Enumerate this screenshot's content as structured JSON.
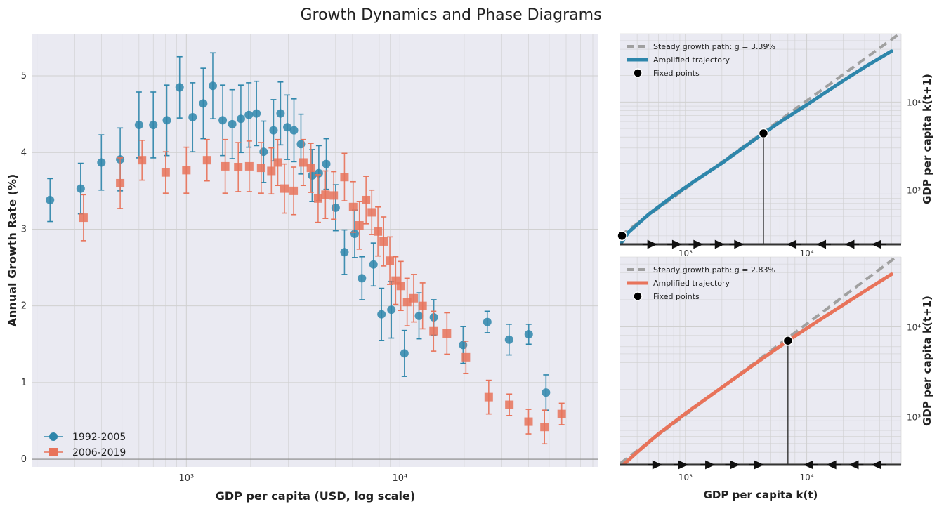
{
  "figure": {
    "title": "Growth Dynamics and Phase Diagrams"
  },
  "colors": {
    "blue": "#2E86AB",
    "orange": "#E8735A",
    "panel_bg": "#EAEAF2",
    "grid": "#D0D0D0",
    "axis_dark": "#333333"
  },
  "chart_data": [
    {
      "type": "scatter",
      "title": "",
      "xlabel": "GDP per capita (USD, log scale)",
      "ylabel": "Annual Growth Rate (%)",
      "xscale": "log",
      "xlim": [
        190,
        85000
      ],
      "ylim": [
        -0.1,
        5.55
      ],
      "xticks": [
        {
          "v": 1000,
          "label": "10³"
        },
        {
          "v": 10000,
          "label": "10⁴"
        }
      ],
      "yticks": [
        0,
        1,
        2,
        3,
        4,
        5
      ],
      "legend_position": "bottom-left",
      "series": [
        {
          "name": "1992-2005",
          "marker": "circle",
          "color": "#2E86AB",
          "points": [
            {
              "x": 230,
              "y": 3.38,
              "err": 0.28
            },
            {
              "x": 320,
              "y": 3.53,
              "err": 0.33
            },
            {
              "x": 400,
              "y": 3.87,
              "err": 0.36
            },
            {
              "x": 490,
              "y": 3.91,
              "err": 0.41
            },
            {
              "x": 600,
              "y": 4.36,
              "err": 0.43
            },
            {
              "x": 700,
              "y": 4.36,
              "err": 0.43
            },
            {
              "x": 810,
              "y": 4.42,
              "err": 0.46
            },
            {
              "x": 930,
              "y": 4.85,
              "err": 0.4
            },
            {
              "x": 1070,
              "y": 4.46,
              "err": 0.45
            },
            {
              "x": 1200,
              "y": 4.64,
              "err": 0.46
            },
            {
              "x": 1330,
              "y": 4.87,
              "err": 0.43
            },
            {
              "x": 1480,
              "y": 4.42,
              "err": 0.46
            },
            {
              "x": 1640,
              "y": 4.37,
              "err": 0.45
            },
            {
              "x": 1800,
              "y": 4.44,
              "err": 0.44
            },
            {
              "x": 1960,
              "y": 4.49,
              "err": 0.42
            },
            {
              "x": 2130,
              "y": 4.51,
              "err": 0.42
            },
            {
              "x": 2300,
              "y": 4.01,
              "err": 0.4
            },
            {
              "x": 2560,
              "y": 4.29,
              "err": 0.4
            },
            {
              "x": 2760,
              "y": 4.51,
              "err": 0.41
            },
            {
              "x": 2970,
              "y": 4.33,
              "err": 0.42
            },
            {
              "x": 3190,
              "y": 4.29,
              "err": 0.41
            },
            {
              "x": 3440,
              "y": 4.11,
              "err": 0.39
            },
            {
              "x": 3880,
              "y": 3.7,
              "err": 0.34
            },
            {
              "x": 4170,
              "y": 3.73,
              "err": 0.36
            },
            {
              "x": 4520,
              "y": 3.85,
              "err": 0.33
            },
            {
              "x": 5000,
              "y": 3.28,
              "err": 0.3
            },
            {
              "x": 5500,
              "y": 2.7,
              "err": 0.29
            },
            {
              "x": 6140,
              "y": 2.94,
              "err": 0.31
            },
            {
              "x": 6640,
              "y": 2.36,
              "err": 0.28
            },
            {
              "x": 7520,
              "y": 2.54,
              "err": 0.28
            },
            {
              "x": 8200,
              "y": 1.89,
              "err": 0.34
            },
            {
              "x": 9120,
              "y": 1.95,
              "err": 0.37
            },
            {
              "x": 10500,
              "y": 1.38,
              "err": 0.3
            },
            {
              "x": 12280,
              "y": 1.87,
              "err": 0.3
            },
            {
              "x": 14410,
              "y": 1.85,
              "err": 0.23
            },
            {
              "x": 19760,
              "y": 1.49,
              "err": 0.24
            },
            {
              "x": 25650,
              "y": 1.79,
              "err": 0.14
            },
            {
              "x": 32440,
              "y": 1.56,
              "err": 0.2
            },
            {
              "x": 40090,
              "y": 1.63,
              "err": 0.13
            },
            {
              "x": 48290,
              "y": 0.87,
              "err": 0.23
            }
          ]
        },
        {
          "name": "2006-2019",
          "marker": "square",
          "color": "#E8735A",
          "points": [
            {
              "x": 330,
              "y": 3.15,
              "err": 0.3
            },
            {
              "x": 490,
              "y": 3.6,
              "err": 0.33
            },
            {
              "x": 620,
              "y": 3.9,
              "err": 0.26
            },
            {
              "x": 800,
              "y": 3.74,
              "err": 0.27
            },
            {
              "x": 1000,
              "y": 3.77,
              "err": 0.3
            },
            {
              "x": 1250,
              "y": 3.9,
              "err": 0.27
            },
            {
              "x": 1520,
              "y": 3.82,
              "err": 0.35
            },
            {
              "x": 1750,
              "y": 3.81,
              "err": 0.32
            },
            {
              "x": 1970,
              "y": 3.82,
              "err": 0.33
            },
            {
              "x": 2240,
              "y": 3.8,
              "err": 0.33
            },
            {
              "x": 2500,
              "y": 3.76,
              "err": 0.3
            },
            {
              "x": 2680,
              "y": 3.87,
              "err": 0.3
            },
            {
              "x": 2880,
              "y": 3.53,
              "err": 0.32
            },
            {
              "x": 3180,
              "y": 3.5,
              "err": 0.31
            },
            {
              "x": 3530,
              "y": 3.87,
              "err": 0.3
            },
            {
              "x": 3830,
              "y": 3.8,
              "err": 0.32
            },
            {
              "x": 4140,
              "y": 3.4,
              "err": 0.31
            },
            {
              "x": 4480,
              "y": 3.45,
              "err": 0.31
            },
            {
              "x": 4900,
              "y": 3.44,
              "err": 0.31
            },
            {
              "x": 5500,
              "y": 3.68,
              "err": 0.31
            },
            {
              "x": 6040,
              "y": 3.29,
              "err": 0.33
            },
            {
              "x": 6460,
              "y": 3.05,
              "err": 0.31
            },
            {
              "x": 6940,
              "y": 3.38,
              "err": 0.31
            },
            {
              "x": 7380,
              "y": 3.22,
              "err": 0.29
            },
            {
              "x": 7890,
              "y": 2.97,
              "err": 0.32
            },
            {
              "x": 8390,
              "y": 2.84,
              "err": 0.32
            },
            {
              "x": 8970,
              "y": 2.59,
              "err": 0.31
            },
            {
              "x": 9550,
              "y": 2.33,
              "err": 0.31
            },
            {
              "x": 10100,
              "y": 2.26,
              "err": 0.32
            },
            {
              "x": 10810,
              "y": 2.05,
              "err": 0.31
            },
            {
              "x": 11600,
              "y": 2.1,
              "err": 0.31
            },
            {
              "x": 12770,
              "y": 2.0,
              "err": 0.3
            },
            {
              "x": 14370,
              "y": 1.67,
              "err": 0.26
            },
            {
              "x": 16600,
              "y": 1.64,
              "err": 0.27
            },
            {
              "x": 20370,
              "y": 1.33,
              "err": 0.21
            },
            {
              "x": 26050,
              "y": 0.81,
              "err": 0.22
            },
            {
              "x": 32530,
              "y": 0.71,
              "err": 0.14
            },
            {
              "x": 40010,
              "y": 0.49,
              "err": 0.16
            },
            {
              "x": 47520,
              "y": 0.42,
              "err": 0.22
            },
            {
              "x": 57200,
              "y": 0.59,
              "err": 0.14
            }
          ]
        }
      ]
    },
    {
      "type": "line",
      "title": "",
      "xlabel": "",
      "ylabel": "GDP per capita k(t+1)",
      "xscale": "log",
      "yscale": "log",
      "xlim": [
        290,
        60000
      ],
      "ylim": [
        240,
        60000
      ],
      "xticks": [
        {
          "v": 1000,
          "label": "10³"
        },
        {
          "v": 10000,
          "label": "10⁴"
        }
      ],
      "yticks": [
        {
          "v": 1000,
          "label": "10³"
        },
        {
          "v": 10000,
          "label": "10⁴"
        }
      ],
      "steady_growth_rate": 3.39,
      "series": [
        {
          "name": "Steady growth path: g = 3.39%",
          "style": "dashed",
          "color": "#A0A0A0",
          "x": [
            290,
            60000
          ],
          "y": [
            300,
            62000
          ]
        },
        {
          "name": "Amplified trajectory",
          "style": "solid",
          "color": "#2E86AB",
          "x": [
            290,
            340,
            500,
            800,
            1200,
            2000,
            3000,
            4400,
            6000,
            10000,
            20000,
            30000,
            50000
          ],
          "y": [
            240,
            330,
            530,
            860,
            1270,
            2020,
            3030,
            4400,
            5900,
            9300,
            17500,
            25000,
            38000
          ]
        }
      ],
      "fixed_points": [
        {
          "x": 300,
          "y": 300
        },
        {
          "x": 4400,
          "y": 4400
        }
      ],
      "legend_labels": [
        "Steady growth path: g = 3.39%",
        "Amplified trajectory",
        "Fixed points"
      ],
      "flow_arrows": [
        {
          "x": 500,
          "dir": "right"
        },
        {
          "x": 800,
          "dir": "right"
        },
        {
          "x": 1200,
          "dir": "right"
        },
        {
          "x": 1800,
          "dir": "right"
        },
        {
          "x": 2600,
          "dir": "right"
        },
        {
          "x": 8000,
          "dir": "left"
        },
        {
          "x": 14000,
          "dir": "left"
        },
        {
          "x": 24000,
          "dir": "left"
        },
        {
          "x": 40000,
          "dir": "left"
        }
      ]
    },
    {
      "type": "line",
      "title": "",
      "xlabel": "GDP per capita k(t)",
      "ylabel": "GDP per capita k(t+1)",
      "xscale": "log",
      "yscale": "log",
      "xlim": [
        290,
        60000
      ],
      "ylim": [
        290,
        60000
      ],
      "xticks": [
        {
          "v": 1000,
          "label": "10³"
        },
        {
          "v": 10000,
          "label": "10⁴"
        }
      ],
      "yticks": [
        {
          "v": 1000,
          "label": "10³"
        },
        {
          "v": 10000,
          "label": "10⁴"
        }
      ],
      "steady_growth_rate": 2.83,
      "series": [
        {
          "name": "Steady growth path: g = 2.83%",
          "style": "dashed",
          "color": "#A0A0A0",
          "x": [
            290,
            60000
          ],
          "y": [
            300,
            66000
          ]
        },
        {
          "name": "Amplified trajectory",
          "style": "solid",
          "color": "#E8735A",
          "x": [
            290,
            400,
            600,
            1000,
            1600,
            2500,
            4000,
            7000,
            12000,
            20000,
            35000,
            50000
          ],
          "y": [
            270,
            400,
            640,
            1080,
            1700,
            2620,
            4120,
            7000,
            11300,
            17600,
            28500,
            38500
          ]
        }
      ],
      "fixed_points": [
        {
          "x": 7000,
          "y": 7000
        }
      ],
      "legend_labels": [
        "Steady growth path: g = 2.83%",
        "Amplified trajectory",
        "Fixed points"
      ],
      "flow_arrows": [
        {
          "x": 550,
          "dir": "right"
        },
        {
          "x": 900,
          "dir": "right"
        },
        {
          "x": 1500,
          "dir": "right"
        },
        {
          "x": 2400,
          "dir": "right"
        },
        {
          "x": 3800,
          "dir": "right"
        },
        {
          "x": 11000,
          "dir": "left"
        },
        {
          "x": 17000,
          "dir": "left"
        },
        {
          "x": 26000,
          "dir": "left"
        },
        {
          "x": 40000,
          "dir": "left"
        }
      ]
    }
  ]
}
